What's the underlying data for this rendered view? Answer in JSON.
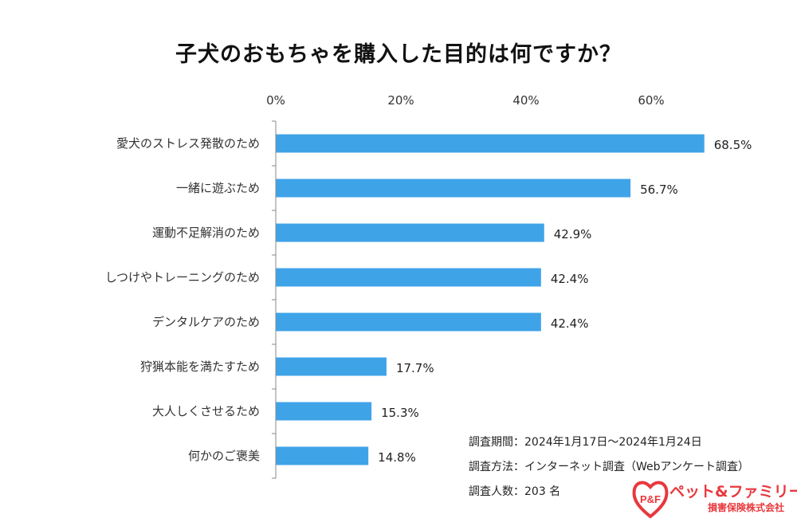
{
  "chart_data": {
    "type": "bar",
    "orientation": "horizontal",
    "title": "子犬のおもちゃを購入した目的は何ですか？",
    "categories": [
      "愛犬のストレス発散のため",
      "一緒に遊ぶため",
      "運動不足解消のため",
      "しつけやトレーニングのため",
      "デンタルケアのため",
      "狩猟本能を満たすため",
      "大人しくさせるため",
      "何かのご褒美"
    ],
    "values": [
      68.5,
      56.7,
      42.9,
      42.4,
      42.4,
      17.7,
      15.3,
      14.8
    ],
    "value_labels": [
      "68.5%",
      "56.7%",
      "42.9%",
      "42.4%",
      "42.4%",
      "17.7%",
      "15.3%",
      "14.8%"
    ],
    "xticks": [
      "0%",
      "20%",
      "40%",
      "60%"
    ],
    "xtick_values": [
      0,
      20,
      40,
      60
    ],
    "xlim": [
      0,
      70
    ],
    "axis_position": "top",
    "grid": false,
    "bar_color": "#3fa3e8"
  },
  "survey": {
    "period": "調査期間：2024年1月17日～2024年1月24日",
    "method": "調査方法：インターネット調査（Webアンケート調査）",
    "respondents": "調査人数：203 名"
  },
  "logo": {
    "brand": "ペット&ファミリー",
    "sub": "損害保険株式会社",
    "mark": "P&F",
    "color": "#e8383d"
  }
}
